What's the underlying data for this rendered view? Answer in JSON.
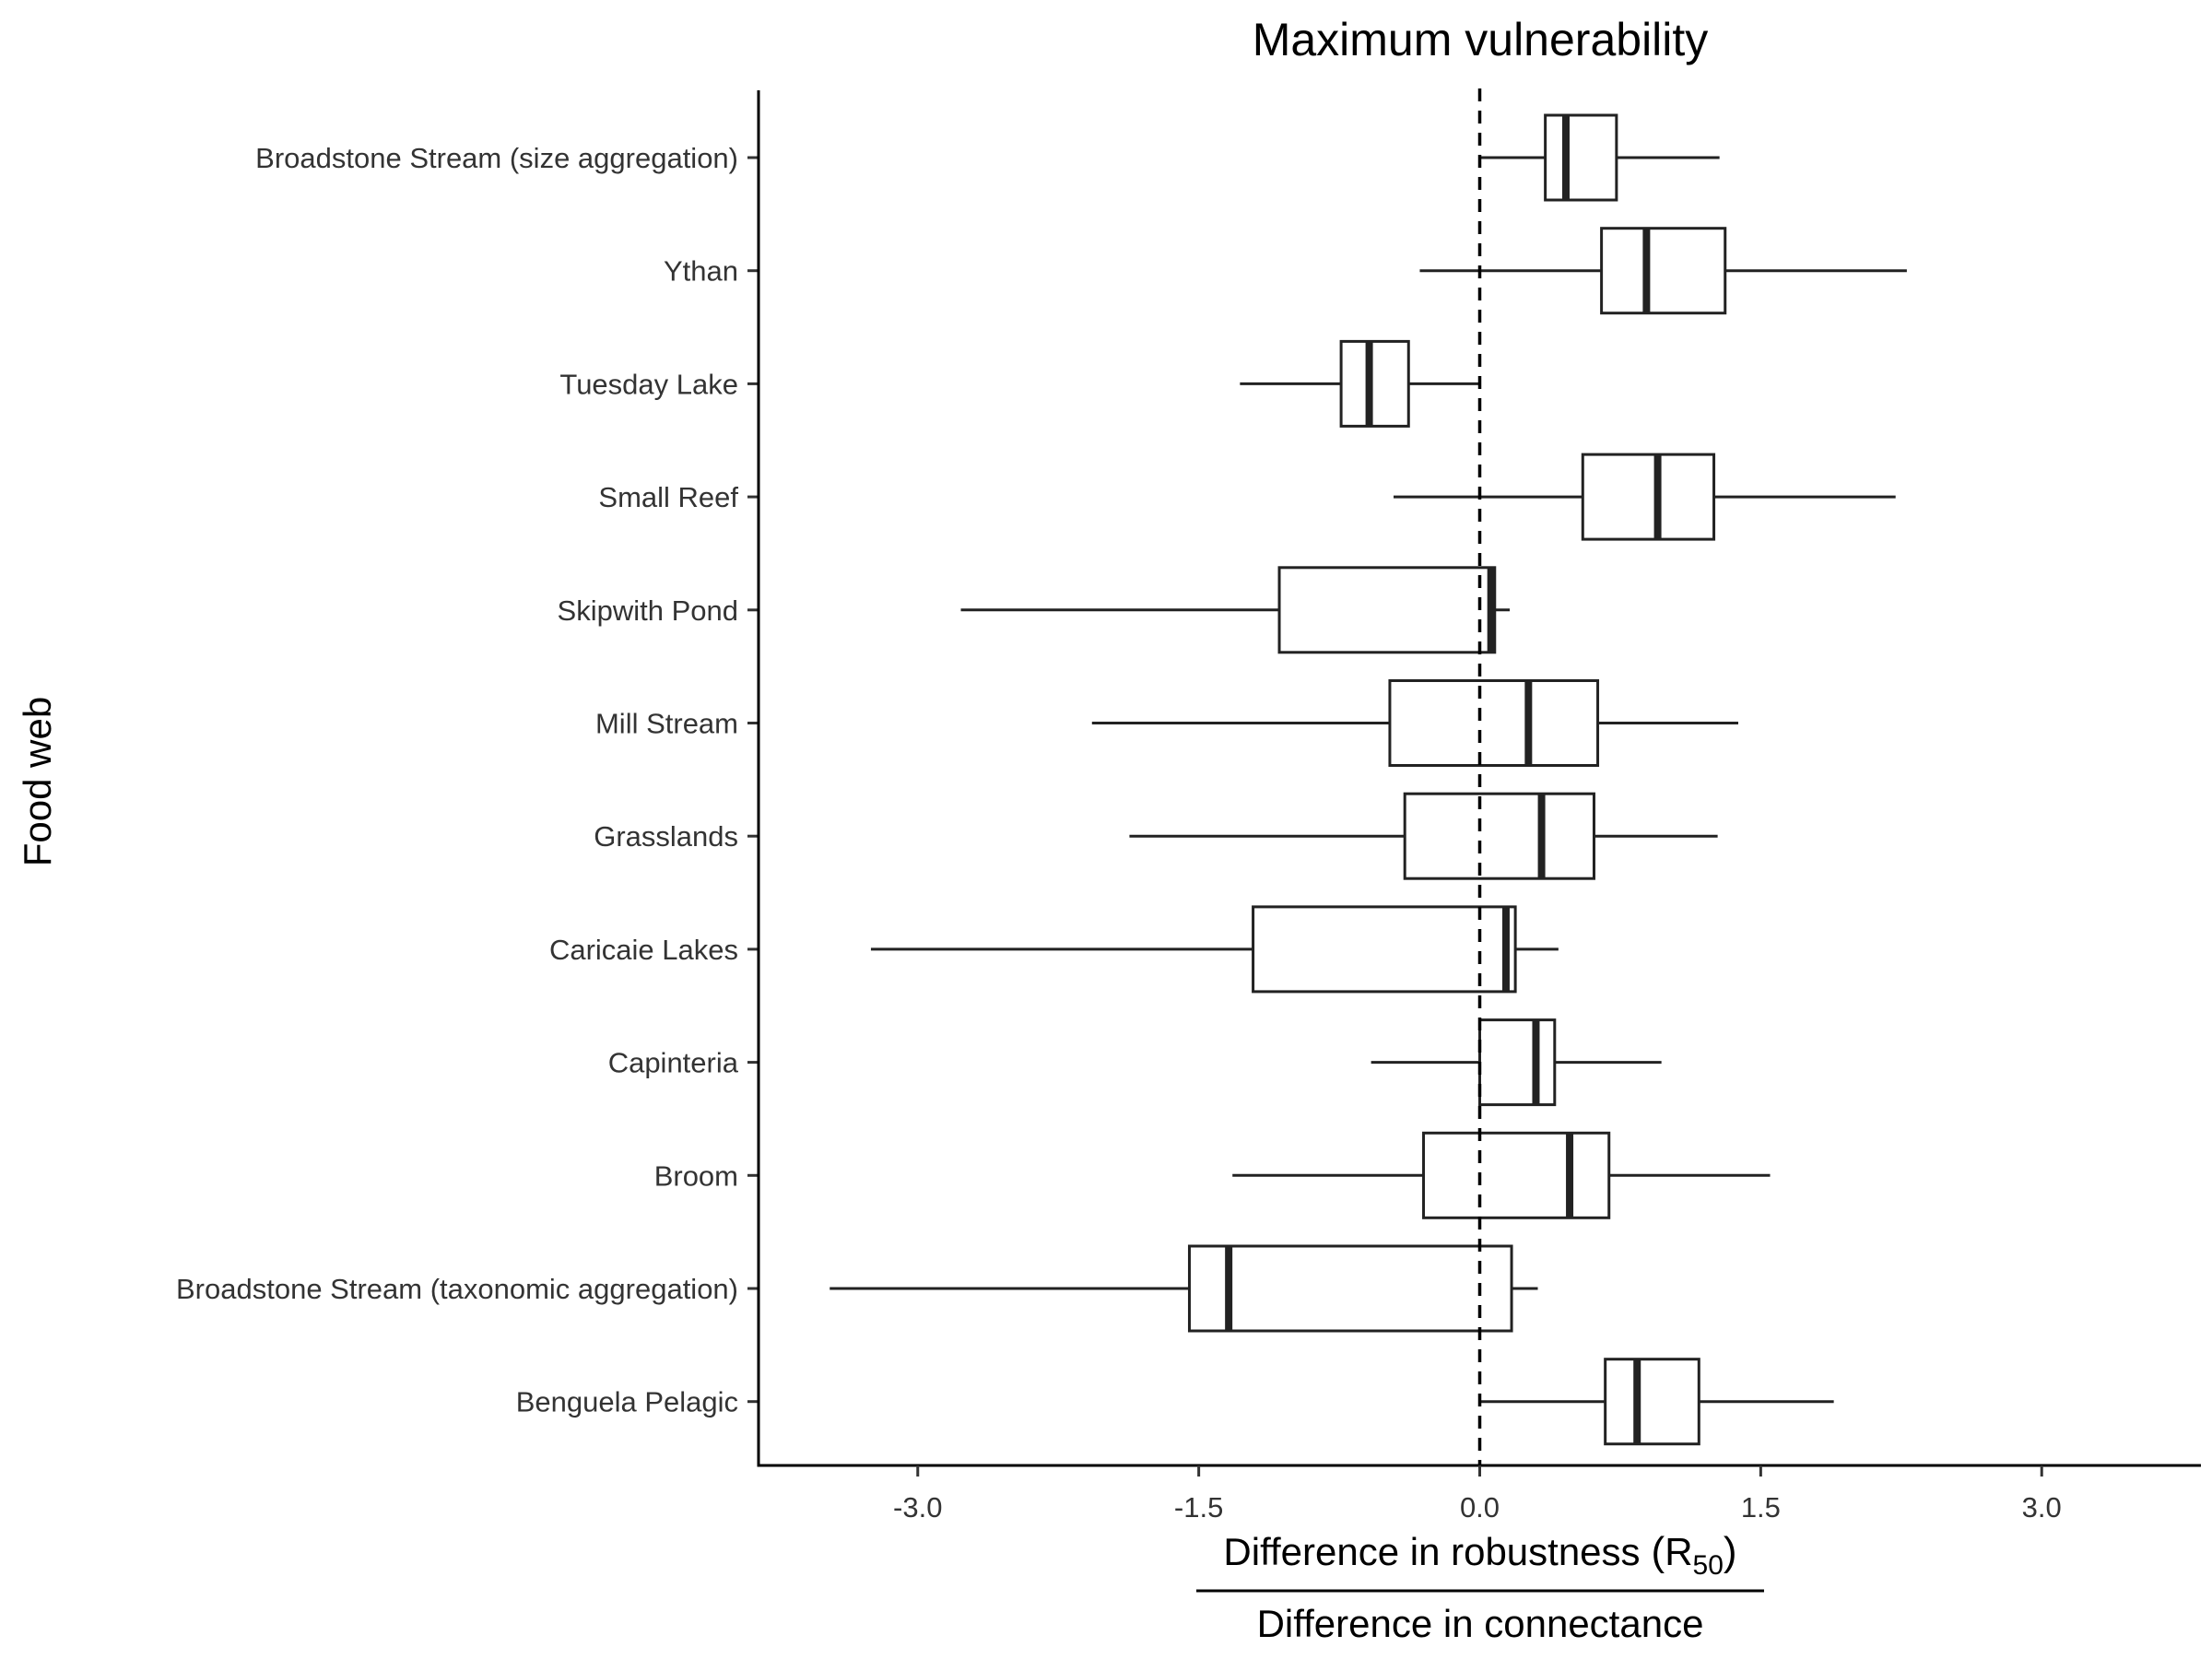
{
  "chart_data": {
    "type": "boxplot",
    "orientation": "horizontal",
    "title": "Maximum vulnerability",
    "xlabel": {
      "numerator": "Difference in robustness",
      "numerator_symbol": "R",
      "numerator_subscript": "50",
      "denominator": "Difference in connectance"
    },
    "ylabel": "Food web",
    "xlim": [
      -3.85,
      3.85
    ],
    "xticks": [
      -3.0,
      -1.5,
      0.0,
      1.5,
      3.0
    ],
    "xtick_labels": [
      "-3.0",
      "-1.5",
      "0.0",
      "1.5",
      "3.0"
    ],
    "reference_line": {
      "x": 0.0,
      "style": "dashed"
    },
    "grid": false,
    "categories": [
      "Broadstone Stream (size aggregation)",
      "Ythan",
      "Tuesday Lake",
      "Small Reef",
      "Skipwith Pond",
      "Mill Stream",
      "Grasslands",
      "Caricaie Lakes",
      "Capinteria",
      "Broom",
      "Broadstone Stream (taxonomic aggregation)",
      "Benguela Pelagic"
    ],
    "boxes": [
      {
        "category": "Broadstone Stream (size aggregation)",
        "whisker_low": 0.0,
        "q1": 0.35,
        "median": 0.46,
        "q3": 0.73,
        "whisker_high": 1.28
      },
      {
        "category": "Ythan",
        "whisker_low": -0.32,
        "q1": 0.65,
        "median": 0.89,
        "q3": 1.31,
        "whisker_high": 2.28
      },
      {
        "category": "Tuesday Lake",
        "whisker_low": -1.28,
        "q1": -0.74,
        "median": -0.59,
        "q3": -0.38,
        "whisker_high": 0.0
      },
      {
        "category": "Small Reef",
        "whisker_low": -0.46,
        "q1": 0.55,
        "median": 0.95,
        "q3": 1.25,
        "whisker_high": 2.22
      },
      {
        "category": "Skipwith Pond",
        "whisker_low": -2.77,
        "q1": -1.07,
        "median": 0.06,
        "q3": 0.08,
        "whisker_high": 0.16
      },
      {
        "category": "Mill Stream",
        "whisker_low": -2.07,
        "q1": -0.48,
        "median": 0.26,
        "q3": 0.63,
        "whisker_high": 1.38
      },
      {
        "category": "Grasslands",
        "whisker_low": -1.87,
        "q1": -0.4,
        "median": 0.33,
        "q3": 0.61,
        "whisker_high": 1.27
      },
      {
        "category": "Caricaie Lakes",
        "whisker_low": -3.25,
        "q1": -1.21,
        "median": 0.14,
        "q3": 0.19,
        "whisker_high": 0.42
      },
      {
        "category": "Capinteria",
        "whisker_low": -0.58,
        "q1": 0.0,
        "median": 0.3,
        "q3": 0.4,
        "whisker_high": 0.97
      },
      {
        "category": "Broom",
        "whisker_low": -1.32,
        "q1": -0.3,
        "median": 0.48,
        "q3": 0.69,
        "whisker_high": 1.55
      },
      {
        "category": "Broadstone Stream (taxonomic aggregation)",
        "whisker_low": -3.47,
        "q1": -1.55,
        "median": -1.34,
        "q3": 0.17,
        "whisker_high": 0.31
      },
      {
        "category": "Benguela Pelagic",
        "whisker_low": 0.0,
        "q1": 0.67,
        "median": 0.84,
        "q3": 1.17,
        "whisker_high": 1.89
      }
    ]
  }
}
